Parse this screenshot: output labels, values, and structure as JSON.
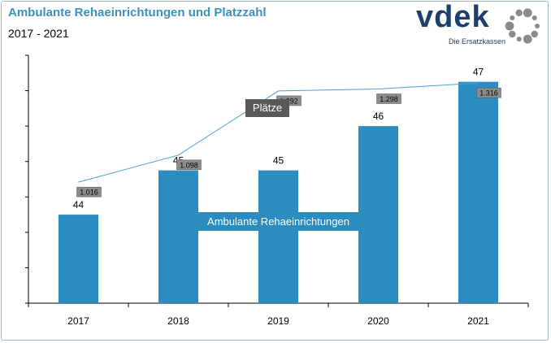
{
  "header": {
    "title": "Ambulante Rehaeinrichtungen und Platzzahl",
    "subtitle": "2017 - 2021"
  },
  "logo": {
    "brand": "vdek",
    "tagline": "Die Ersatzkassen",
    "color": "#1c3f6e",
    "ring_color": "#8a8a8a"
  },
  "chart_data": {
    "type": "bar",
    "categories": [
      "2017",
      "2018",
      "2019",
      "2020",
      "2021"
    ],
    "series": [
      {
        "name": "Ambulante Rehaeinrichtungen",
        "type": "bar",
        "values": [
          44,
          45,
          45,
          46,
          47
        ],
        "labels": [
          "44",
          "45",
          "45",
          "46",
          "47"
        ],
        "color": "#2a8cc0"
      },
      {
        "name": "Plätze",
        "type": "line",
        "values": [
          1016,
          1098,
          1292,
          1298,
          1316
        ],
        "labels": [
          "1.016",
          "1.098",
          "1.292",
          "1.298",
          "1.316"
        ],
        "color": "#4a9fd0"
      }
    ],
    "bar_ylim": [
      42.0,
      47.6
    ],
    "line_ylim": [
      650,
      1400
    ],
    "grid": false,
    "legend": "inline labels"
  }
}
